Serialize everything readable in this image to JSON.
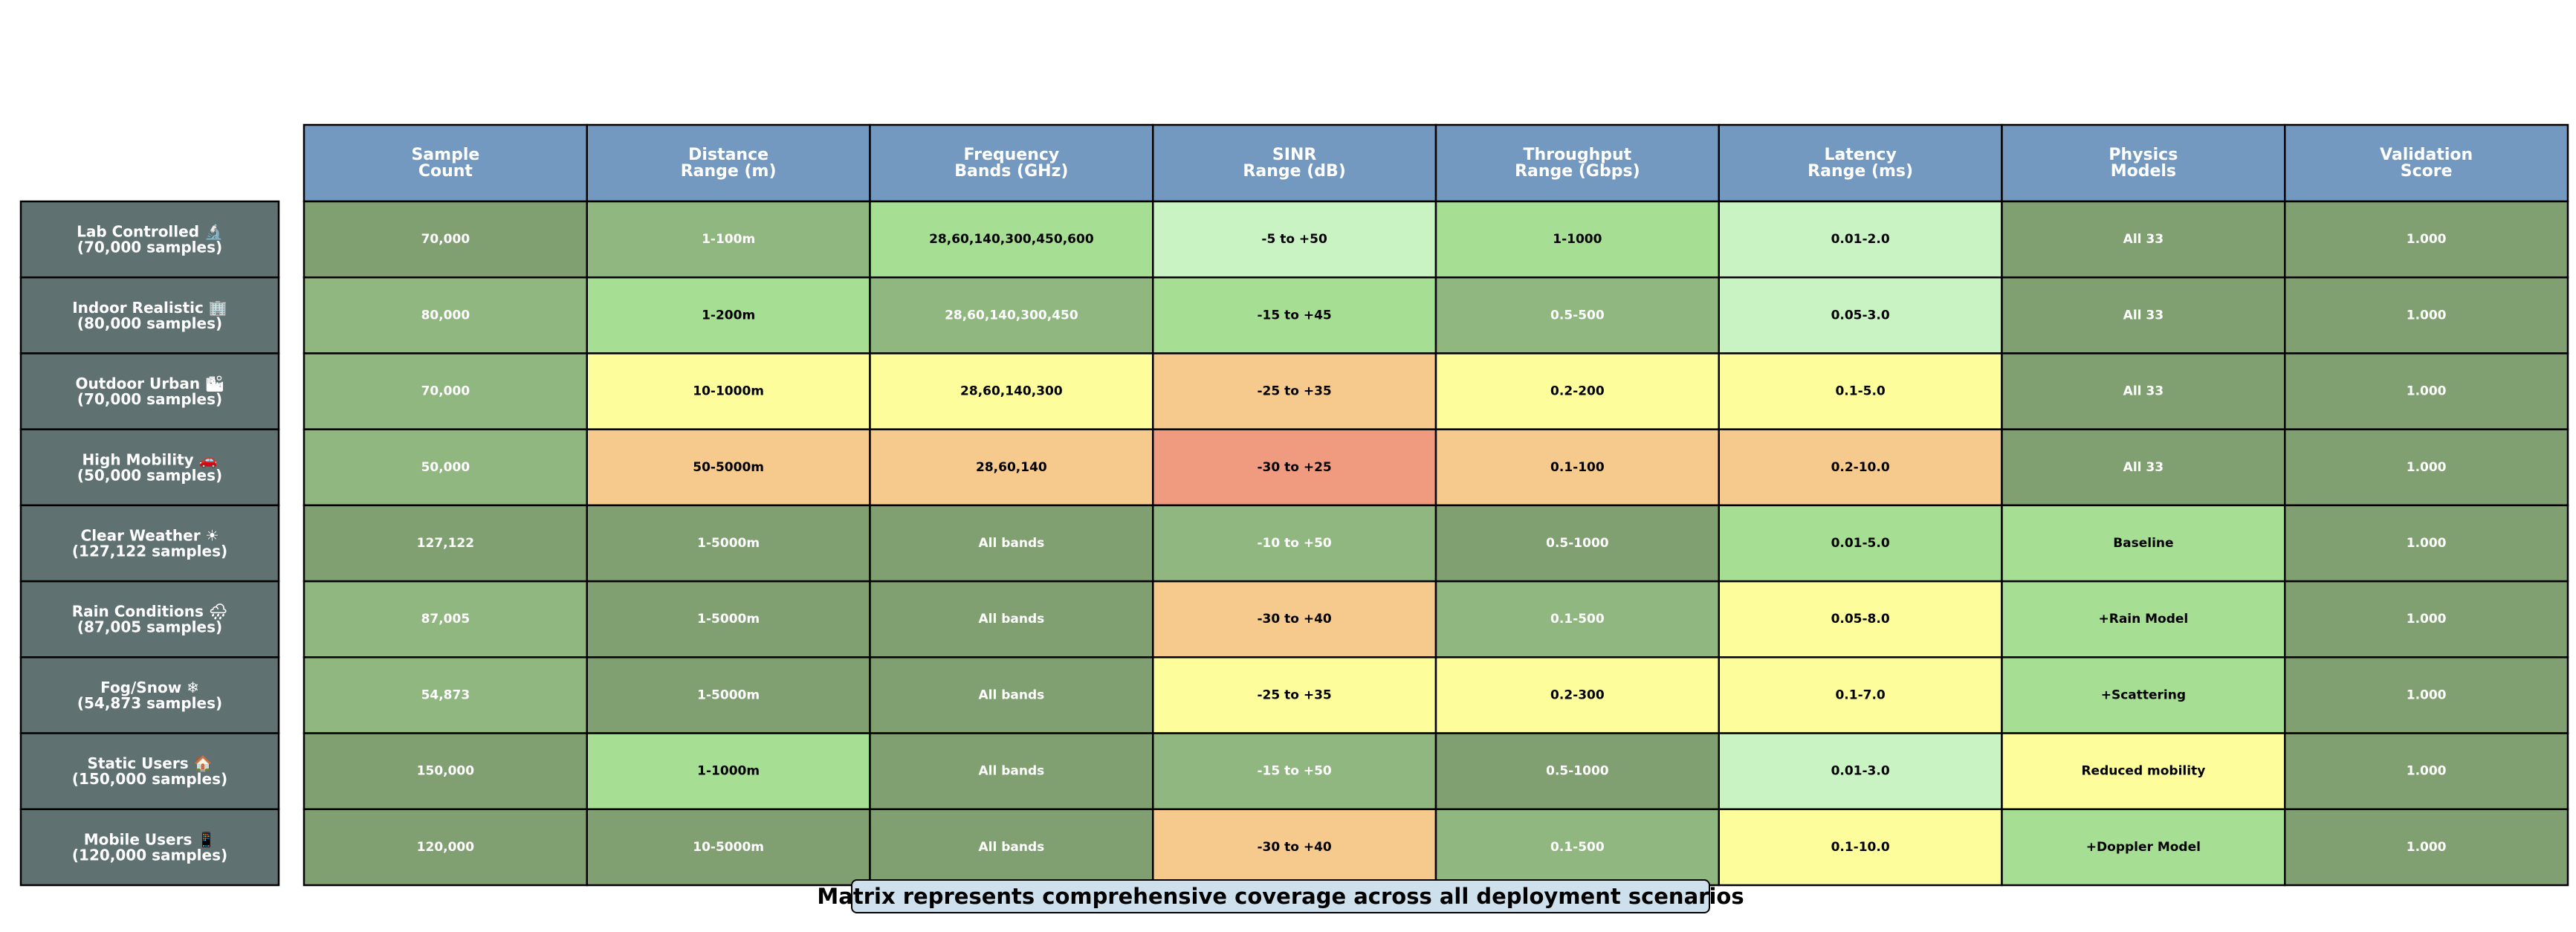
{
  "chart_data": {
    "type": "table",
    "columns": [
      [
        "Sample",
        "Count"
      ],
      [
        "Distance",
        "Range (m)"
      ],
      [
        "Frequency",
        "Bands (GHz)"
      ],
      [
        "SINR",
        "Range (dB)"
      ],
      [
        "Throughput",
        "Range (Gbps)"
      ],
      [
        "Latency",
        "Range (ms)"
      ],
      [
        "Physics",
        "Models"
      ],
      [
        "Validation",
        "Score"
      ]
    ],
    "rows": [
      {
        "label": [
          "Lab Controlled 🔬",
          "(70,000 samples)"
        ],
        "cells": [
          "70,000",
          "1-100m",
          "28,60,140,300,450,600",
          "-5 to +50",
          "1-1000",
          "0.01-2.0",
          "All 33",
          "1.000"
        ],
        "colors": [
          "c1",
          "c2",
          "c3",
          "c4",
          "c3",
          "c4",
          "c1",
          "c1"
        ]
      },
      {
        "label": [
          "Indoor Realistic 🏢",
          "(80,000 samples)"
        ],
        "cells": [
          "80,000",
          "1-200m",
          "28,60,140,300,450",
          "-15 to +45",
          "0.5-500",
          "0.05-3.0",
          "All 33",
          "1.000"
        ],
        "colors": [
          "c2",
          "c3",
          "c2",
          "c3",
          "c2",
          "c4",
          "c1",
          "c1"
        ]
      },
      {
        "label": [
          "Outdoor Urban 🏙",
          "(70,000 samples)"
        ],
        "cells": [
          "70,000",
          "10-1000m",
          "28,60,140,300",
          "-25 to +35",
          "0.2-200",
          "0.1-5.0",
          "All 33",
          "1.000"
        ],
        "colors": [
          "c2",
          "c5",
          "c5",
          "c6",
          "c5",
          "c5",
          "c1",
          "c1"
        ]
      },
      {
        "label": [
          "High Mobility 🚗",
          "(50,000 samples)"
        ],
        "cells": [
          "50,000",
          "50-5000m",
          "28,60,140",
          "-30 to +25",
          "0.1-100",
          "0.2-10.0",
          "All 33",
          "1.000"
        ],
        "colors": [
          "c2",
          "c6",
          "c6",
          "c7",
          "c6",
          "c6",
          "c1",
          "c1"
        ]
      },
      {
        "label": [
          "Clear Weather ☀",
          "(127,122 samples)"
        ],
        "cells": [
          "127,122",
          "1-5000m",
          "All bands",
          "-10 to +50",
          "0.5-1000",
          "0.01-5.0",
          "Baseline",
          "1.000"
        ],
        "colors": [
          "c1",
          "c1",
          "c1",
          "c2",
          "c1",
          "c3",
          "c3",
          "c1"
        ]
      },
      {
        "label": [
          "Rain Conditions 🌧",
          "(87,005 samples)"
        ],
        "cells": [
          "87,005",
          "1-5000m",
          "All bands",
          "-30 to +40",
          "0.1-500",
          "0.05-8.0",
          "+Rain Model",
          "1.000"
        ],
        "colors": [
          "c2",
          "c1",
          "c1",
          "c6",
          "c2",
          "c5",
          "c3",
          "c1"
        ]
      },
      {
        "label": [
          "Fog/Snow ❄",
          "(54,873 samples)"
        ],
        "cells": [
          "54,873",
          "1-5000m",
          "All bands",
          "-25 to +35",
          "0.2-300",
          "0.1-7.0",
          "+Scattering",
          "1.000"
        ],
        "colors": [
          "c2",
          "c1",
          "c1",
          "c5",
          "c5",
          "c5",
          "c3",
          "c1"
        ]
      },
      {
        "label": [
          "Static Users 🏠",
          "(150,000 samples)"
        ],
        "cells": [
          "150,000",
          "1-1000m",
          "All bands",
          "-15 to +50",
          "0.5-1000",
          "0.01-3.0",
          "Reduced mobility",
          "1.000"
        ],
        "colors": [
          "c1",
          "c3",
          "c1",
          "c2",
          "c1",
          "c4",
          "c5",
          "c1"
        ]
      },
      {
        "label": [
          "Mobile Users 📱",
          "(120,000 samples)"
        ],
        "cells": [
          "120,000",
          "10-5000m",
          "All bands",
          "-30 to +40",
          "0.1-500",
          "0.1-10.0",
          "+Doppler Model",
          "1.000"
        ],
        "colors": [
          "c1",
          "c1",
          "c1",
          "c6",
          "c2",
          "c5",
          "c3",
          "c1"
        ]
      }
    ],
    "caption": "Matrix represents comprehensive coverage across all deployment scenarios"
  },
  "colors": {
    "header": "#7499c0",
    "row_label": "#5f7170",
    "c1": "#81a071",
    "c2": "#8fb77f",
    "c3": "#a6df93",
    "c4": "#c9f3c3",
    "c5": "#fdfd9c",
    "c6": "#f6c98c",
    "c7": "#f09a80"
  },
  "text_on_dark": [
    "c1",
    "c2"
  ]
}
